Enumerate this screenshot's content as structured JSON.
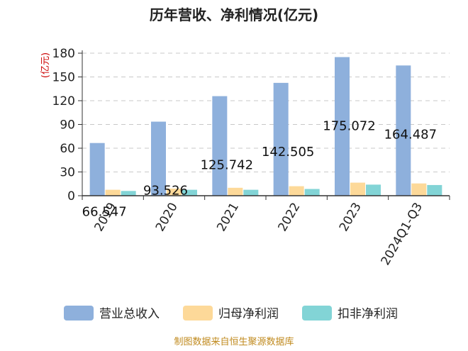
{
  "chart_data": {
    "type": "bar",
    "title": "历年营收、净利情况(亿元)",
    "ylabel": "(亿元)",
    "categories": [
      "2019",
      "2020",
      "2021",
      "2022",
      "2023",
      "2024Q1-Q3"
    ],
    "series": [
      {
        "name": "营业总收入",
        "color": "#8eb0dc",
        "values": [
          66.547,
          93.526,
          125.742,
          142.505,
          175.072,
          164.487
        ]
      },
      {
        "name": "归母净利润",
        "color": "#fdd999",
        "values": [
          7.5,
          9,
          10,
          12,
          16.5,
          15.5
        ]
      },
      {
        "name": "扣非净利润",
        "color": "#82d4d6",
        "values": [
          6,
          7.5,
          7.5,
          8.5,
          14,
          13.5
        ]
      }
    ],
    "data_labels": [
      "66.547",
      "93.526",
      "125.742",
      "142.505",
      "175.072",
      "164.487"
    ],
    "ylim": [
      0,
      180
    ],
    "yticks": [
      0,
      30,
      60,
      90,
      120,
      150,
      180
    ],
    "grid": true,
    "legend_position": "bottom"
  },
  "source": "制图数据来自恒生聚源数据库"
}
